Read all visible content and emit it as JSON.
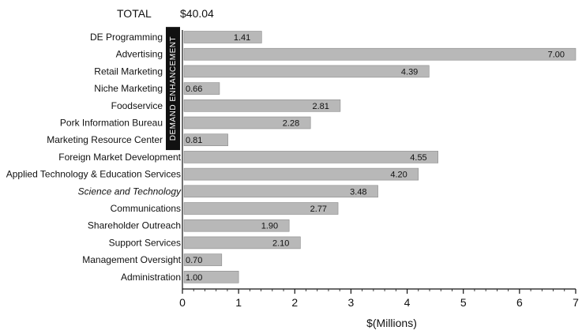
{
  "summary": {
    "total_label": "TOTAL",
    "total_value": "$40.04"
  },
  "group": {
    "label": "DEMAND ENHANCEMENT"
  },
  "colors": {
    "bar_fill": "#b8b8b8",
    "group_band": "#111111",
    "axis": "#111111"
  },
  "chart_data": {
    "type": "bar",
    "orientation": "horizontal",
    "title": "",
    "xlabel": "$(Millions)",
    "ylabel": "",
    "xlim": [
      0,
      7
    ],
    "x_ticks": [
      "0",
      "1",
      "2",
      "3",
      "4",
      "5",
      "6",
      "7"
    ],
    "grid": false,
    "categories": [
      "DE Programming",
      "Advertising",
      "Retail Marketing",
      "Niche Marketing",
      "Foodservice",
      "Pork Information Bureau",
      "Marketing Resource Center",
      "Foreign Market Development",
      "Applied Technology & Education Services",
      "Science and Technology",
      "Communications",
      "Shareholder Outreach",
      "Support Services",
      "Management Oversight",
      "Administration"
    ],
    "values": [
      1.41,
      7.0,
      4.39,
      0.66,
      2.81,
      2.28,
      0.81,
      4.55,
      4.2,
      3.48,
      2.77,
      1.9,
      2.1,
      0.7,
      1.0
    ],
    "value_labels": [
      "1.41",
      "7.00",
      "4.39",
      "0.66",
      "2.81",
      "2.28",
      "0.81",
      "4.55",
      "4.20",
      "3.48",
      "2.77",
      "1.90",
      "2.10",
      "0.70",
      "1.00"
    ],
    "demand_enhancement_categories": [
      "DE Programming",
      "Advertising",
      "Retail Marketing",
      "Niche Marketing",
      "Foodservice",
      "Pork Information Bureau",
      "Marketing Resource Center"
    ]
  }
}
